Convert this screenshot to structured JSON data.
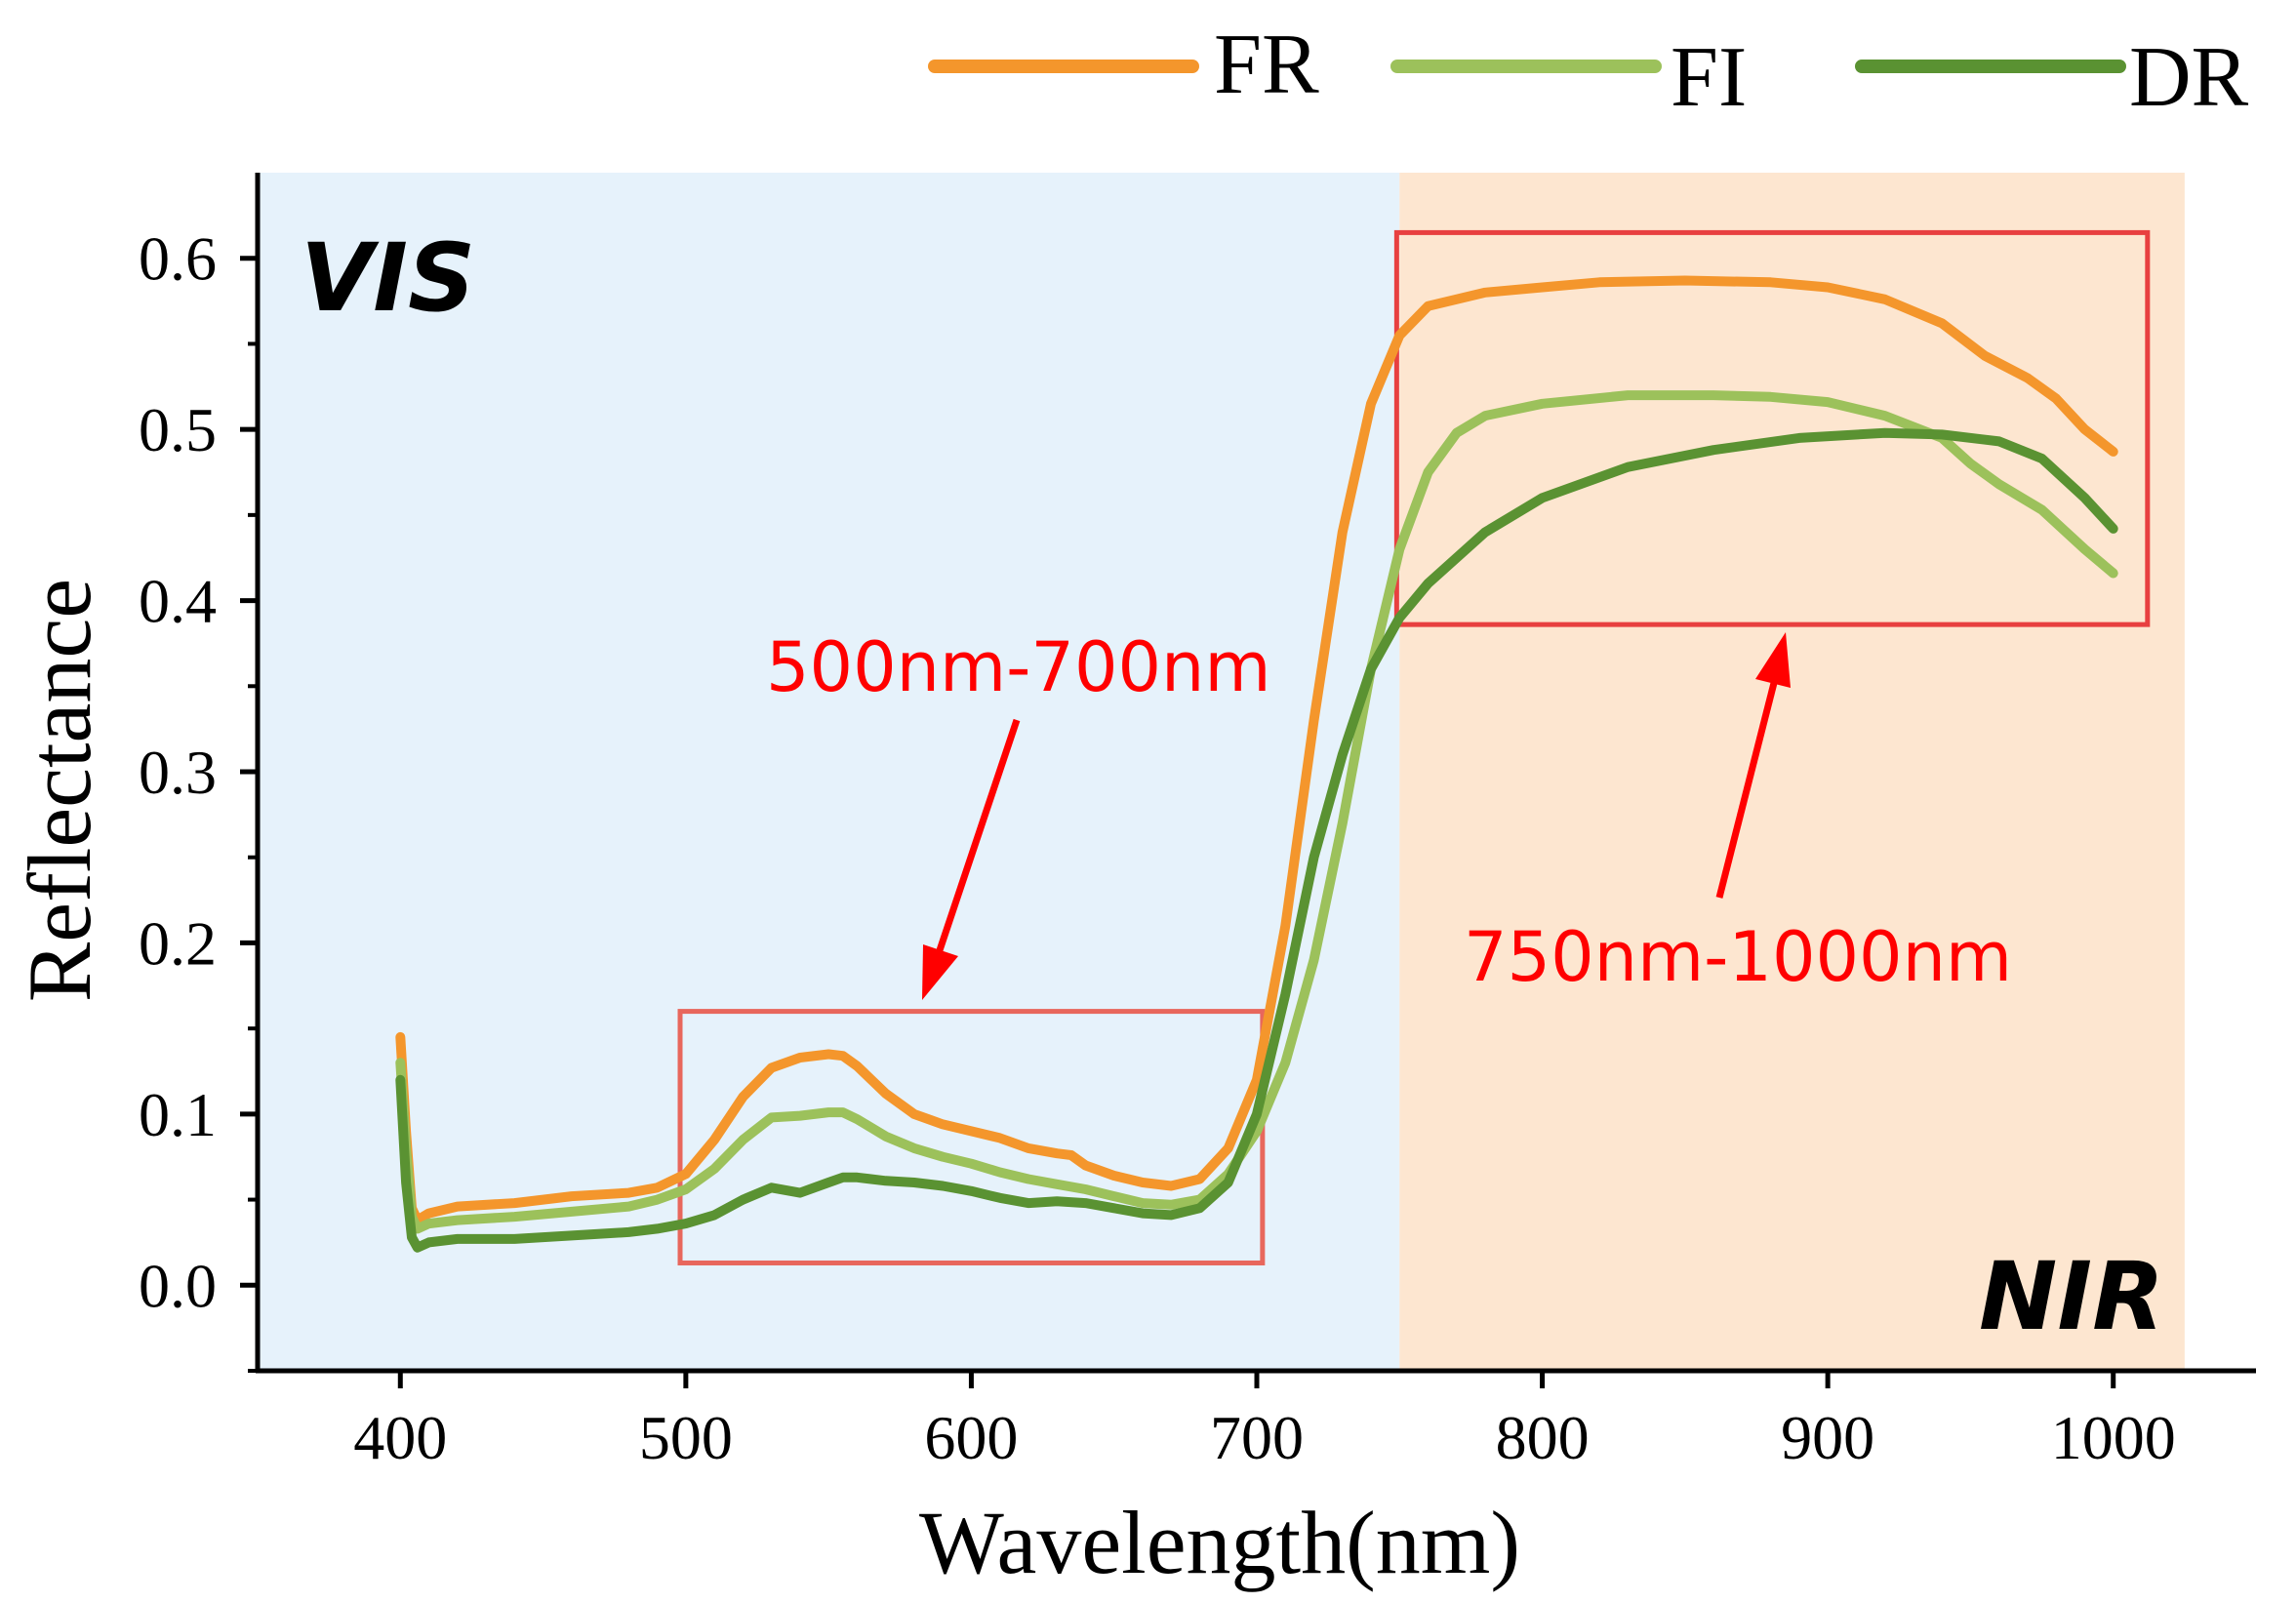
{
  "chart_data": {
    "type": "line",
    "title": "",
    "xlabel": "Wavelength(nm)",
    "ylabel": "Reflectance",
    "xlim": [
      350,
      1050
    ],
    "ylim": [
      -0.05,
      0.65
    ],
    "x_ticks": [
      400,
      500,
      600,
      700,
      800,
      900,
      1000
    ],
    "x_tick_labels": [
      "400",
      "500",
      "600",
      "700",
      "800",
      "900",
      "1000"
    ],
    "y_ticks": [
      0.0,
      0.1,
      0.2,
      0.3,
      0.4,
      0.5,
      0.6
    ],
    "y_tick_labels": [
      "0.0",
      "0.1",
      "0.2",
      "0.3",
      "0.4",
      "0.5",
      "0.6"
    ],
    "legend_position": "top-right",
    "regions": [
      {
        "name": "VIS",
        "x_start": 350,
        "x_end": 750,
        "color": "#e6f2fb"
      },
      {
        "name": "NIR",
        "x_start": 750,
        "x_end": 1025,
        "color": "#fde6d0"
      }
    ],
    "series": [
      {
        "name": "FR",
        "color": "#f4962c",
        "points": [
          [
            400,
            0.145
          ],
          [
            402,
            0.09
          ],
          [
            404,
            0.045
          ],
          [
            406,
            0.038
          ],
          [
            410,
            0.042
          ],
          [
            420,
            0.046
          ],
          [
            440,
            0.048
          ],
          [
            460,
            0.052
          ],
          [
            480,
            0.054
          ],
          [
            490,
            0.057
          ],
          [
            500,
            0.065
          ],
          [
            510,
            0.085
          ],
          [
            520,
            0.11
          ],
          [
            530,
            0.127
          ],
          [
            540,
            0.133
          ],
          [
            550,
            0.135
          ],
          [
            555,
            0.134
          ],
          [
            560,
            0.128
          ],
          [
            570,
            0.112
          ],
          [
            580,
            0.1
          ],
          [
            590,
            0.094
          ],
          [
            600,
            0.09
          ],
          [
            610,
            0.086
          ],
          [
            620,
            0.08
          ],
          [
            630,
            0.077
          ],
          [
            635,
            0.076
          ],
          [
            640,
            0.07
          ],
          [
            650,
            0.064
          ],
          [
            660,
            0.06
          ],
          [
            670,
            0.058
          ],
          [
            680,
            0.062
          ],
          [
            690,
            0.08
          ],
          [
            700,
            0.12
          ],
          [
            710,
            0.21
          ],
          [
            720,
            0.33
          ],
          [
            730,
            0.44
          ],
          [
            740,
            0.515
          ],
          [
            750,
            0.555
          ],
          [
            760,
            0.572
          ],
          [
            780,
            0.58
          ],
          [
            800,
            0.583
          ],
          [
            820,
            0.586
          ],
          [
            850,
            0.587
          ],
          [
            880,
            0.586
          ],
          [
            900,
            0.583
          ],
          [
            920,
            0.576
          ],
          [
            940,
            0.562
          ],
          [
            955,
            0.543
          ],
          [
            970,
            0.53
          ],
          [
            980,
            0.518
          ],
          [
            990,
            0.5
          ],
          [
            1000,
            0.487
          ]
        ]
      },
      {
        "name": "FI",
        "color": "#9cc15b",
        "points": [
          [
            400,
            0.13
          ],
          [
            402,
            0.08
          ],
          [
            404,
            0.04
          ],
          [
            406,
            0.033
          ],
          [
            410,
            0.036
          ],
          [
            420,
            0.038
          ],
          [
            440,
            0.04
          ],
          [
            460,
            0.043
          ],
          [
            480,
            0.046
          ],
          [
            490,
            0.05
          ],
          [
            500,
            0.056
          ],
          [
            510,
            0.068
          ],
          [
            520,
            0.085
          ],
          [
            530,
            0.098
          ],
          [
            540,
            0.099
          ],
          [
            550,
            0.101
          ],
          [
            555,
            0.101
          ],
          [
            560,
            0.097
          ],
          [
            570,
            0.087
          ],
          [
            580,
            0.08
          ],
          [
            590,
            0.075
          ],
          [
            600,
            0.071
          ],
          [
            610,
            0.066
          ],
          [
            620,
            0.062
          ],
          [
            630,
            0.059
          ],
          [
            640,
            0.056
          ],
          [
            650,
            0.052
          ],
          [
            660,
            0.048
          ],
          [
            670,
            0.047
          ],
          [
            680,
            0.05
          ],
          [
            690,
            0.065
          ],
          [
            700,
            0.09
          ],
          [
            710,
            0.13
          ],
          [
            720,
            0.19
          ],
          [
            730,
            0.27
          ],
          [
            740,
            0.36
          ],
          [
            750,
            0.43
          ],
          [
            760,
            0.475
          ],
          [
            770,
            0.498
          ],
          [
            780,
            0.508
          ],
          [
            800,
            0.515
          ],
          [
            830,
            0.52
          ],
          [
            860,
            0.52
          ],
          [
            880,
            0.519
          ],
          [
            900,
            0.516
          ],
          [
            920,
            0.508
          ],
          [
            940,
            0.495
          ],
          [
            950,
            0.48
          ],
          [
            960,
            0.468
          ],
          [
            975,
            0.453
          ],
          [
            990,
            0.43
          ],
          [
            1000,
            0.416
          ]
        ]
      },
      {
        "name": "DR",
        "color": "#5a9232",
        "points": [
          [
            400,
            0.12
          ],
          [
            402,
            0.06
          ],
          [
            404,
            0.028
          ],
          [
            406,
            0.022
          ],
          [
            410,
            0.025
          ],
          [
            420,
            0.027
          ],
          [
            440,
            0.027
          ],
          [
            460,
            0.029
          ],
          [
            480,
            0.031
          ],
          [
            490,
            0.033
          ],
          [
            500,
            0.036
          ],
          [
            510,
            0.041
          ],
          [
            520,
            0.05
          ],
          [
            530,
            0.057
          ],
          [
            540,
            0.054
          ],
          [
            550,
            0.06
          ],
          [
            555,
            0.063
          ],
          [
            560,
            0.063
          ],
          [
            570,
            0.061
          ],
          [
            580,
            0.06
          ],
          [
            590,
            0.058
          ],
          [
            600,
            0.055
          ],
          [
            610,
            0.051
          ],
          [
            620,
            0.048
          ],
          [
            630,
            0.049
          ],
          [
            640,
            0.048
          ],
          [
            650,
            0.045
          ],
          [
            660,
            0.042
          ],
          [
            670,
            0.041
          ],
          [
            680,
            0.045
          ],
          [
            690,
            0.06
          ],
          [
            700,
            0.1
          ],
          [
            710,
            0.17
          ],
          [
            720,
            0.25
          ],
          [
            730,
            0.31
          ],
          [
            740,
            0.36
          ],
          [
            750,
            0.39
          ],
          [
            760,
            0.41
          ],
          [
            780,
            0.44
          ],
          [
            800,
            0.46
          ],
          [
            830,
            0.478
          ],
          [
            860,
            0.488
          ],
          [
            890,
            0.495
          ],
          [
            920,
            0.498
          ],
          [
            940,
            0.497
          ],
          [
            960,
            0.493
          ],
          [
            975,
            0.483
          ],
          [
            990,
            0.46
          ],
          [
            1000,
            0.442
          ]
        ]
      }
    ],
    "annotations": [
      {
        "text": "500nm-700nm",
        "color": "#ff0000"
      },
      {
        "text": "750nm-1000nm",
        "color": "#ff0000"
      }
    ]
  },
  "boxes": [
    {
      "name": "box-500-700",
      "x_start": 498,
      "x_end": 702,
      "y_start": 0.013,
      "y_end": 0.16,
      "color": "#e8675c"
    },
    {
      "name": "box-750-1000",
      "x_start": 749,
      "x_end": 1012,
      "y_start": 0.386,
      "y_end": 0.615,
      "color": "#e84040"
    }
  ]
}
